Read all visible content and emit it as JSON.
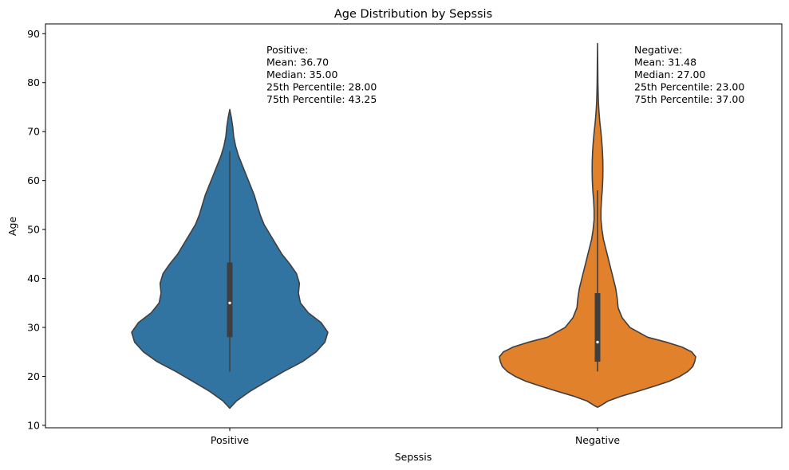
{
  "chart_data": {
    "type": "violin",
    "title": "Age Distribution by Sepssis",
    "xlabel": "Sepssis",
    "ylabel": "Age",
    "categories": [
      "Positive",
      "Negative"
    ],
    "ylim": [
      9.5,
      92
    ],
    "yticks": [
      10,
      20,
      30,
      40,
      50,
      60,
      70,
      80,
      90
    ],
    "grid": false,
    "series": [
      {
        "category": "Positive",
        "color": "#3274a1",
        "range": [
          13.5,
          74.5
        ],
        "whisker": [
          21,
          66
        ],
        "q1": 28.0,
        "median": 35.0,
        "q3": 43.25,
        "density": [
          [
            13.5,
            0.0
          ],
          [
            15,
            0.07
          ],
          [
            17,
            0.21
          ],
          [
            19,
            0.38
          ],
          [
            21,
            0.55
          ],
          [
            23,
            0.74
          ],
          [
            25,
            0.88
          ],
          [
            27,
            0.97
          ],
          [
            29,
            1.0
          ],
          [
            31,
            0.93
          ],
          [
            33,
            0.8
          ],
          [
            35,
            0.72
          ],
          [
            37,
            0.7
          ],
          [
            39,
            0.71
          ],
          [
            41,
            0.68
          ],
          [
            43,
            0.61
          ],
          [
            45,
            0.53
          ],
          [
            47,
            0.47
          ],
          [
            49,
            0.41
          ],
          [
            51,
            0.35
          ],
          [
            53,
            0.31
          ],
          [
            55,
            0.28
          ],
          [
            57,
            0.25
          ],
          [
            59,
            0.21
          ],
          [
            61,
            0.17
          ],
          [
            63,
            0.13
          ],
          [
            65,
            0.09
          ],
          [
            67,
            0.06
          ],
          [
            69,
            0.04
          ],
          [
            71,
            0.03
          ],
          [
            73,
            0.015
          ],
          [
            74.5,
            0.0
          ]
        ],
        "annotation": [
          "Positive:",
          "Mean: 36.70",
          "Median: 35.00",
          "25th Percentile: 28.00",
          "75th Percentile: 43.25"
        ]
      },
      {
        "category": "Negative",
        "color": "#e1812c",
        "range": [
          13.7,
          88
        ],
        "whisker": [
          21,
          58
        ],
        "q1": 23.0,
        "median": 27.0,
        "q3": 37.0,
        "density": [
          [
            13.7,
            0.0
          ],
          [
            14,
            0.03
          ],
          [
            15,
            0.11
          ],
          [
            16,
            0.25
          ],
          [
            17,
            0.42
          ],
          [
            18,
            0.58
          ],
          [
            19,
            0.73
          ],
          [
            20,
            0.84
          ],
          [
            21,
            0.92
          ],
          [
            22,
            0.97
          ],
          [
            23,
            0.99
          ],
          [
            24,
            1.0
          ],
          [
            25,
            0.96
          ],
          [
            26,
            0.86
          ],
          [
            27,
            0.7
          ],
          [
            28,
            0.51
          ],
          [
            30,
            0.33
          ],
          [
            32,
            0.25
          ],
          [
            34,
            0.21
          ],
          [
            36,
            0.2
          ],
          [
            38,
            0.185
          ],
          [
            40,
            0.16
          ],
          [
            42,
            0.135
          ],
          [
            44,
            0.11
          ],
          [
            46,
            0.085
          ],
          [
            48,
            0.06
          ],
          [
            50,
            0.045
          ],
          [
            52,
            0.035
          ],
          [
            54,
            0.035
          ],
          [
            56,
            0.04
          ],
          [
            58,
            0.048
          ],
          [
            60,
            0.053
          ],
          [
            62,
            0.055
          ],
          [
            64,
            0.054
          ],
          [
            66,
            0.05
          ],
          [
            68,
            0.043
          ],
          [
            70,
            0.034
          ],
          [
            72,
            0.023
          ],
          [
            74,
            0.015
          ],
          [
            76,
            0.009
          ],
          [
            78,
            0.006
          ],
          [
            80,
            0.004
          ],
          [
            82,
            0.003
          ],
          [
            84,
            0.002
          ],
          [
            86,
            0.001
          ],
          [
            88,
            0.0
          ]
        ],
        "annotation": [
          "Negative:",
          "Mean: 31.48",
          "Median: 27.00",
          "25th Percentile: 23.00",
          "75th Percentile: 37.00"
        ]
      }
    ]
  }
}
